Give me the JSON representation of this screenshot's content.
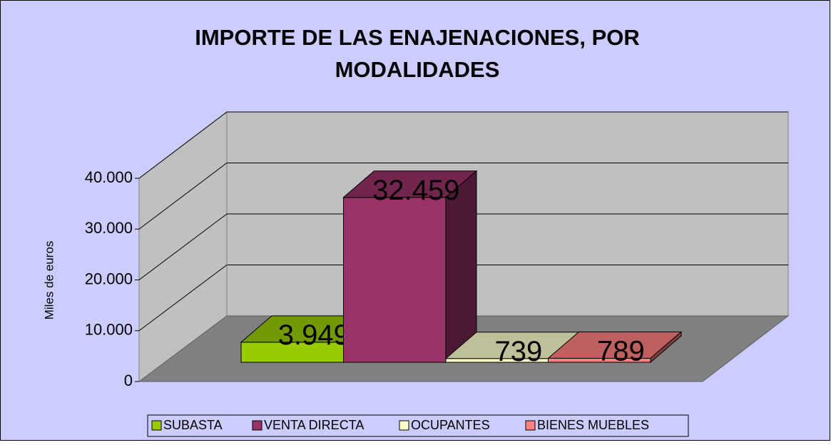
{
  "chart_data": {
    "type": "bar3d",
    "title": "IMPORTE DE LAS ENAJENACIONES, POR MODALIDADES",
    "y_label": "Miles de euros",
    "series": [
      {
        "name": "SUBASTA",
        "color": "#99cc00",
        "values": [
          3949
        ],
        "value_labels": [
          "3.949"
        ]
      },
      {
        "name": "VENTA DIRECTA",
        "color": "#993366",
        "values": [
          32459
        ],
        "value_labels": [
          "32.459"
        ]
      },
      {
        "name": "OCUPANTES",
        "color": "#ffffcc",
        "values": [
          739
        ]
      },
      {
        "name": "BIENES MUEBLES",
        "color": "#ff8080",
        "values": [
          789
        ]
      }
    ],
    "ylim": [
      0,
      40000
    ],
    "yticks": [
      0,
      {
        "value": 10000,
        "label": "10.000"
      },
      {
        "value": 20000,
        "label": "20.000"
      },
      {
        "value": 30000,
        "label": "30.000"
      },
      {
        "value": 40000,
        "label": "40.000"
      }
    ],
    "grid": true
  }
}
